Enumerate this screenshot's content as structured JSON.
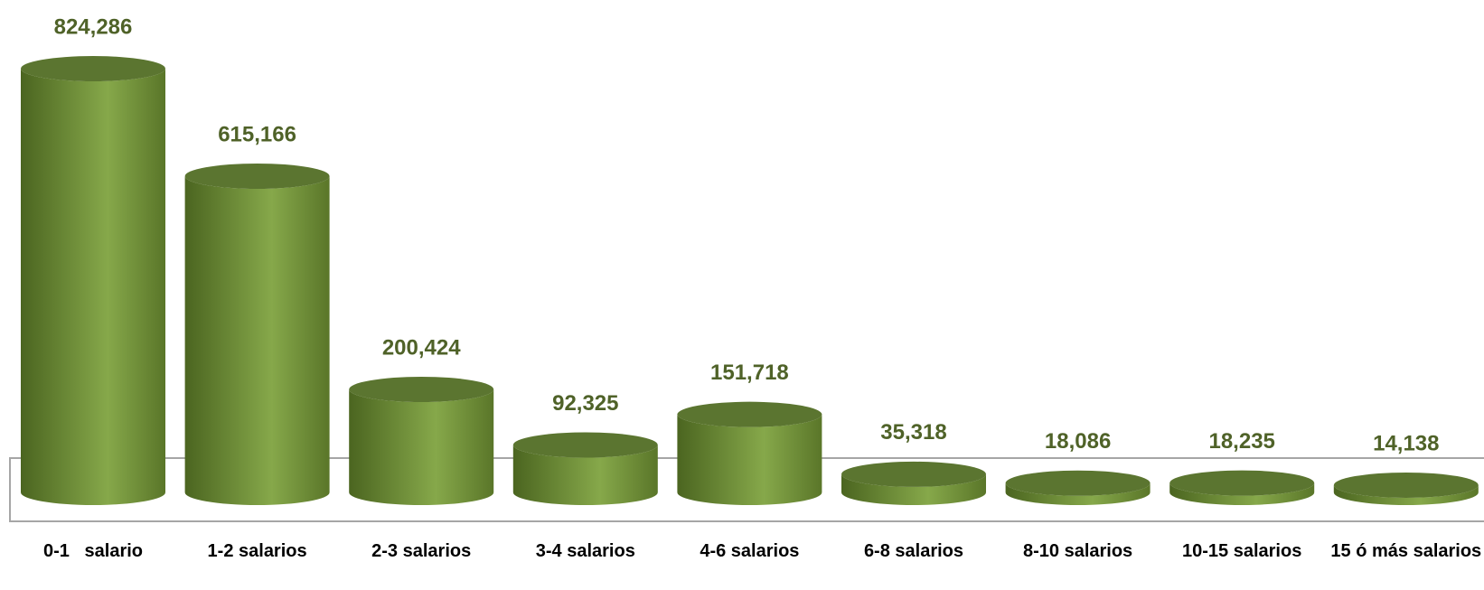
{
  "chart_data": {
    "type": "bar",
    "categories": [
      "0-1   salario",
      "1-2 salarios",
      "2-3 salarios",
      "3-4 salarios",
      "4-6 salarios",
      "6-8 salarios",
      "8-10 salarios",
      "10-15 salarios",
      "15 ó más salarios"
    ],
    "values": [
      824286,
      615166,
      200424,
      92325,
      151718,
      35318,
      18086,
      18235,
      14138
    ],
    "value_labels": [
      "824,286",
      "615,166",
      "200,424",
      "92,325",
      "151,718",
      "35,318",
      "18,086",
      "18,235",
      "14,138"
    ],
    "color": "#6e8c38"
  }
}
